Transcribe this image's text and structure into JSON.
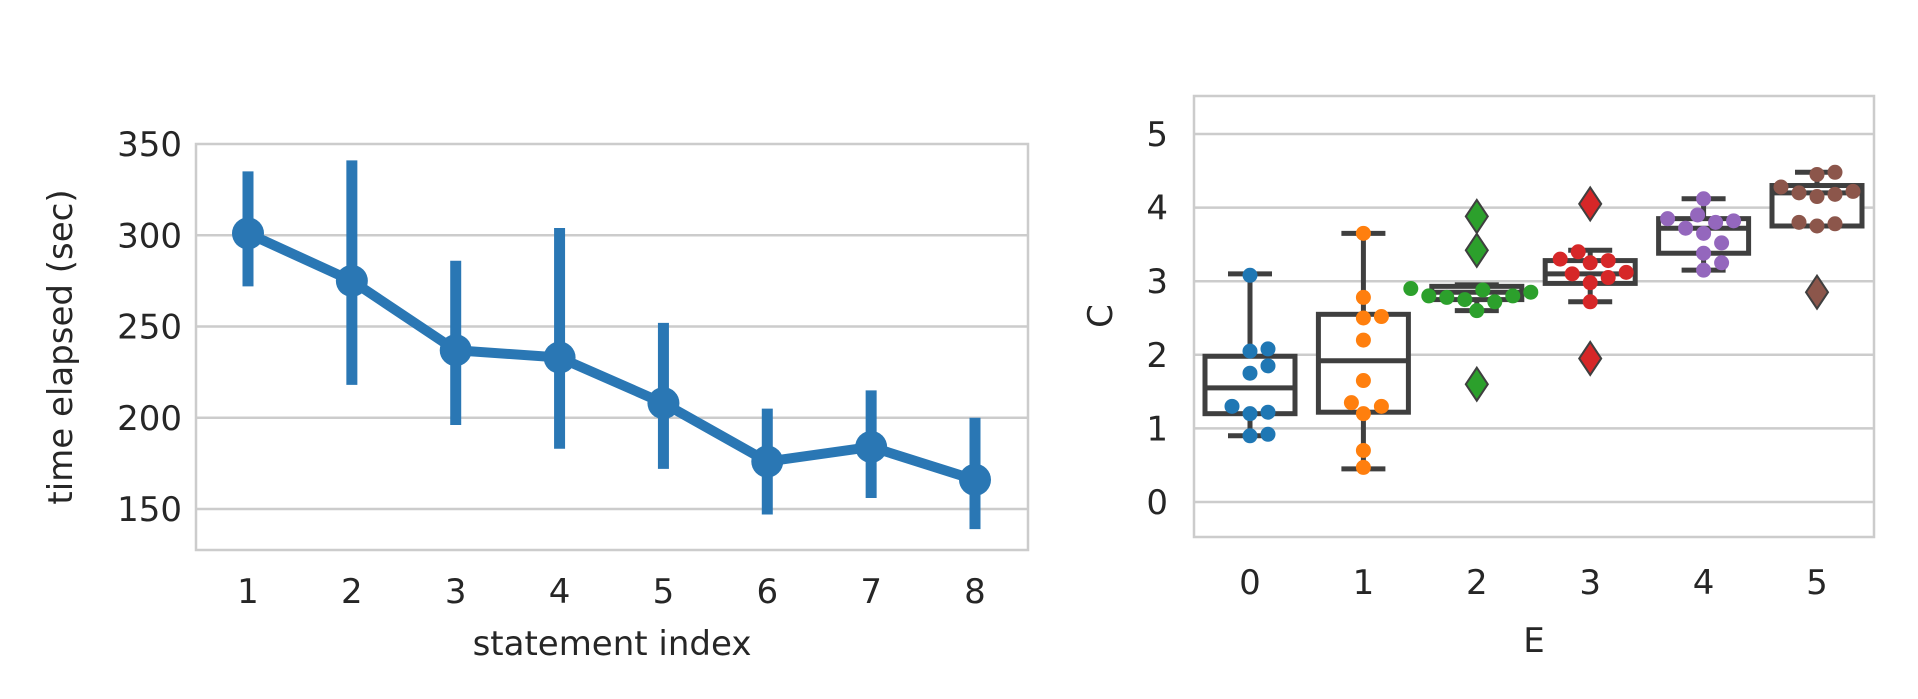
{
  "chart_data": [
    {
      "type": "point",
      "title": "",
      "xlabel": "statement index",
      "ylabel": "time elapsed (sec)",
      "categories": [
        "1",
        "2",
        "3",
        "4",
        "5",
        "6",
        "7",
        "8"
      ],
      "values": [
        301,
        275,
        237,
        233,
        208,
        176,
        184,
        166
      ],
      "error_low": [
        272,
        218,
        196,
        183,
        172,
        147,
        156,
        139
      ],
      "error_high": [
        335,
        341,
        286,
        304,
        252,
        205,
        215,
        200
      ],
      "yticks": [
        "150",
        "200",
        "250",
        "300",
        "350"
      ],
      "ylim": [
        128,
        350
      ],
      "grid": true,
      "color": "#2a77b4"
    },
    {
      "type": "box",
      "title": "",
      "xlabel": "E",
      "ylabel": "C",
      "categories": [
        "0",
        "1",
        "2",
        "3",
        "4",
        "5"
      ],
      "yticks": [
        "0",
        "1",
        "2",
        "3",
        "4",
        "5"
      ],
      "ylim": [
        -0.5,
        5.5
      ],
      "grid": true,
      "colors": [
        "#1f77b4",
        "#ff7f0e",
        "#2ca02c",
        "#d62728",
        "#9467bd",
        "#8c564b"
      ],
      "boxes": [
        {
          "whisker_low": 0.9,
          "q1": 1.2,
          "median": 1.55,
          "q3": 1.98,
          "whisker_high": 3.1,
          "outliers": []
        },
        {
          "whisker_low": 0.45,
          "q1": 1.22,
          "median": 1.92,
          "q3": 2.55,
          "whisker_high": 3.65,
          "outliers": []
        },
        {
          "whisker_low": 2.6,
          "q1": 2.75,
          "median": 2.85,
          "q3": 2.93,
          "whisker_high": 2.95,
          "outliers": [
            3.88,
            3.42,
            1.6
          ]
        },
        {
          "whisker_low": 2.72,
          "q1": 2.97,
          "median": 3.1,
          "q3": 3.28,
          "whisker_high": 3.42,
          "outliers": [
            4.05,
            1.95
          ]
        },
        {
          "whisker_low": 3.15,
          "q1": 3.38,
          "median": 3.72,
          "q3": 3.85,
          "whisker_high": 4.12,
          "outliers": []
        },
        {
          "whisker_low": 3.75,
          "q1": 3.75,
          "median": 4.2,
          "q3": 4.3,
          "whisker_high": 4.48,
          "outliers": [
            2.85
          ]
        }
      ],
      "points": [
        [
          3.08,
          2.08,
          2.05,
          1.85,
          1.75,
          1.3,
          1.22,
          1.2,
          0.9,
          0.92
        ],
        [
          3.65,
          2.78,
          2.52,
          2.5,
          2.2,
          1.65,
          1.35,
          1.3,
          1.2,
          0.7,
          0.47
        ],
        [
          2.9,
          2.88,
          2.85,
          2.8,
          2.8,
          2.78,
          2.75,
          2.72,
          2.6
        ],
        [
          3.4,
          3.3,
          3.28,
          3.25,
          3.12,
          3.1,
          3.05,
          2.98,
          2.72
        ],
        [
          4.12,
          3.9,
          3.85,
          3.82,
          3.8,
          3.72,
          3.65,
          3.52,
          3.38,
          3.25,
          3.15
        ],
        [
          4.48,
          4.45,
          4.28,
          4.22,
          4.2,
          4.18,
          4.15,
          3.8,
          3.78,
          3.75
        ]
      ]
    }
  ]
}
